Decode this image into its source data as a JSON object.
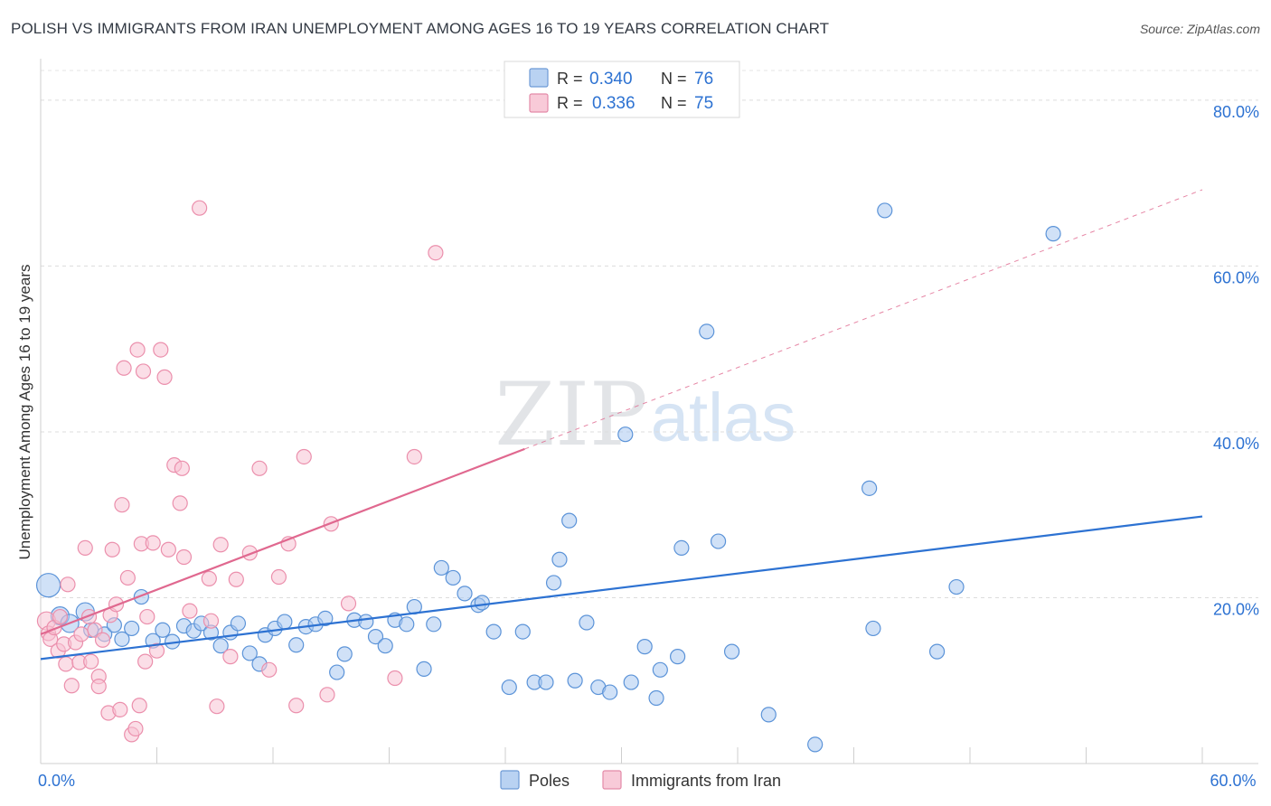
{
  "title": "POLISH VS IMMIGRANTS FROM IRAN UNEMPLOYMENT AMONG AGES 16 TO 19 YEARS CORRELATION CHART",
  "source": "Source: ZipAtlas.com",
  "watermark": {
    "zip": "ZIP",
    "atlas": "atlas"
  },
  "chart_data": {
    "type": "scatter",
    "xlabel": "",
    "ylabel": "Unemployment Among Ages 16 to 19 years",
    "xlim": [
      0,
      60
    ],
    "ylim": [
      0,
      85
    ],
    "x_tick_labels": [
      {
        "value": 0,
        "label": "0.0%"
      },
      {
        "value": 60,
        "label": "60.0%"
      }
    ],
    "y_tick_labels": [
      {
        "value": 20,
        "label": "20.0%"
      },
      {
        "value": 40,
        "label": "40.0%"
      },
      {
        "value": 60,
        "label": "60.0%"
      },
      {
        "value": 80,
        "label": "80.0%"
      }
    ],
    "grid": true,
    "legend_position": "top-center",
    "series": [
      {
        "name": "Poles",
        "color": "#5b93d8",
        "fill": "#a9c9f0",
        "line_color": "#2d72d2",
        "R": "0.340",
        "N": "76",
        "trend": {
          "x": [
            0,
            60
          ],
          "y": [
            12.6,
            29.8
          ],
          "dashed_from": null
        },
        "points": [
          [
            0.4,
            21.5,
            3
          ],
          [
            1.0,
            17.8,
            2
          ],
          [
            1.5,
            16.9,
            2
          ],
          [
            2.3,
            18.3,
            2
          ],
          [
            2.6,
            16.1,
            1
          ],
          [
            3.3,
            15.6,
            1
          ],
          [
            3.8,
            16.7,
            1
          ],
          [
            4.2,
            15.0,
            1
          ],
          [
            4.7,
            16.3,
            1
          ],
          [
            5.2,
            20.1,
            1
          ],
          [
            5.8,
            14.8,
            1
          ],
          [
            6.3,
            16.1,
            1
          ],
          [
            6.8,
            14.7,
            1
          ],
          [
            7.4,
            16.6,
            1
          ],
          [
            7.9,
            16.0,
            1
          ],
          [
            8.3,
            16.9,
            1
          ],
          [
            8.8,
            15.8,
            1
          ],
          [
            9.3,
            14.2,
            1
          ],
          [
            9.8,
            15.8,
            1
          ],
          [
            10.2,
            16.9,
            1
          ],
          [
            10.8,
            13.3,
            1
          ],
          [
            11.3,
            12.0,
            1
          ],
          [
            11.6,
            15.5,
            1
          ],
          [
            12.1,
            16.3,
            1
          ],
          [
            12.6,
            17.1,
            1
          ],
          [
            13.2,
            14.3,
            1
          ],
          [
            13.7,
            16.5,
            1
          ],
          [
            14.2,
            16.8,
            1
          ],
          [
            14.7,
            17.5,
            1
          ],
          [
            15.3,
            11.0,
            1
          ],
          [
            15.7,
            13.2,
            1
          ],
          [
            16.2,
            17.3,
            1
          ],
          [
            16.8,
            17.1,
            1
          ],
          [
            17.3,
            15.3,
            1
          ],
          [
            17.8,
            14.2,
            1
          ],
          [
            18.3,
            17.3,
            1
          ],
          [
            18.9,
            16.8,
            1
          ],
          [
            19.3,
            18.9,
            1
          ],
          [
            19.8,
            11.4,
            1
          ],
          [
            20.3,
            16.8,
            1
          ],
          [
            20.7,
            23.6,
            1
          ],
          [
            21.3,
            22.4,
            1
          ],
          [
            21.9,
            20.5,
            1
          ],
          [
            22.6,
            19.1,
            1
          ],
          [
            22.8,
            19.4,
            1
          ],
          [
            23.4,
            15.9,
            1
          ],
          [
            24.2,
            9.2,
            1
          ],
          [
            24.9,
            15.9,
            1
          ],
          [
            25.5,
            9.8,
            1
          ],
          [
            26.1,
            9.8,
            1
          ],
          [
            26.5,
            21.8,
            1
          ],
          [
            26.8,
            24.6,
            1
          ],
          [
            27.3,
            29.3,
            1
          ],
          [
            27.6,
            10.0,
            1
          ],
          [
            28.2,
            17.0,
            1
          ],
          [
            28.8,
            9.2,
            1
          ],
          [
            29.4,
            8.6,
            1
          ],
          [
            30.2,
            39.7,
            1
          ],
          [
            30.5,
            9.8,
            1
          ],
          [
            31.2,
            14.1,
            1
          ],
          [
            31.8,
            7.9,
            1
          ],
          [
            32.0,
            11.3,
            1
          ],
          [
            32.9,
            12.9,
            1
          ],
          [
            33.1,
            26.0,
            1
          ],
          [
            34.4,
            52.1,
            1
          ],
          [
            35.0,
            26.8,
            1
          ],
          [
            35.7,
            13.5,
            1
          ],
          [
            37.6,
            5.9,
            1
          ],
          [
            40.0,
            2.3,
            1
          ],
          [
            42.8,
            33.2,
            1
          ],
          [
            43.0,
            16.3,
            1
          ],
          [
            43.6,
            66.7,
            1
          ],
          [
            46.3,
            13.5,
            1
          ],
          [
            47.3,
            21.3,
            1
          ],
          [
            52.3,
            63.9,
            1
          ]
        ]
      },
      {
        "name": "Immigrants from Iran",
        "color": "#eb8fac",
        "fill": "#f7c3d3",
        "line_color": "#e0688f",
        "R": "0.336",
        "N": "75",
        "trend": {
          "x": [
            0,
            60
          ],
          "y": [
            15.6,
            69.2
          ],
          "dashed_from": 25.0
        },
        "points": [
          [
            0.3,
            17.2,
            2
          ],
          [
            0.4,
            15.7,
            1
          ],
          [
            0.5,
            15.0,
            1
          ],
          [
            0.7,
            16.4,
            1
          ],
          [
            0.9,
            13.6,
            1
          ],
          [
            1.0,
            17.7,
            1
          ],
          [
            1.2,
            14.4,
            1
          ],
          [
            1.3,
            12.0,
            1
          ],
          [
            1.4,
            21.6,
            1
          ],
          [
            1.6,
            9.4,
            1
          ],
          [
            1.8,
            14.6,
            1
          ],
          [
            2.0,
            12.2,
            1
          ],
          [
            2.1,
            15.6,
            1
          ],
          [
            2.3,
            26.0,
            1
          ],
          [
            2.5,
            17.7,
            1
          ],
          [
            2.6,
            12.3,
            1
          ],
          [
            2.8,
            16.1,
            1
          ],
          [
            3.0,
            10.5,
            1
          ],
          [
            3.0,
            9.3,
            1
          ],
          [
            3.2,
            14.9,
            1
          ],
          [
            3.5,
            6.1,
            1
          ],
          [
            3.6,
            17.9,
            1
          ],
          [
            3.7,
            25.8,
            1
          ],
          [
            3.9,
            19.2,
            1
          ],
          [
            4.1,
            6.5,
            1
          ],
          [
            4.2,
            31.2,
            1
          ],
          [
            4.3,
            47.7,
            1
          ],
          [
            4.5,
            22.4,
            1
          ],
          [
            4.7,
            3.5,
            1
          ],
          [
            4.9,
            4.2,
            1
          ],
          [
            5.0,
            49.9,
            1
          ],
          [
            5.1,
            7.0,
            1
          ],
          [
            5.2,
            26.5,
            1
          ],
          [
            5.3,
            47.3,
            1
          ],
          [
            5.4,
            12.3,
            1
          ],
          [
            5.5,
            17.7,
            1
          ],
          [
            5.8,
            26.6,
            1
          ],
          [
            6.0,
            13.6,
            1
          ],
          [
            6.2,
            49.9,
            1
          ],
          [
            6.4,
            46.6,
            1
          ],
          [
            6.6,
            25.8,
            1
          ],
          [
            6.9,
            36.0,
            1
          ],
          [
            7.2,
            31.4,
            1
          ],
          [
            7.3,
            35.6,
            1
          ],
          [
            7.4,
            24.9,
            1
          ],
          [
            7.7,
            18.4,
            1
          ],
          [
            8.2,
            67.0,
            1
          ],
          [
            8.7,
            22.3,
            1
          ],
          [
            8.8,
            17.2,
            1
          ],
          [
            9.1,
            6.9,
            1
          ],
          [
            9.3,
            26.4,
            1
          ],
          [
            9.8,
            12.9,
            1
          ],
          [
            10.1,
            22.2,
            1
          ],
          [
            10.8,
            25.4,
            1
          ],
          [
            11.3,
            35.6,
            1
          ],
          [
            11.8,
            11.3,
            1
          ],
          [
            12.3,
            22.5,
            1
          ],
          [
            12.8,
            26.5,
            1
          ],
          [
            13.2,
            7.0,
            1
          ],
          [
            13.6,
            37.0,
            1
          ],
          [
            14.8,
            8.3,
            1
          ],
          [
            15.0,
            28.9,
            1
          ],
          [
            15.9,
            19.3,
            1
          ],
          [
            18.3,
            10.3,
            1
          ],
          [
            19.3,
            37.0,
            1
          ],
          [
            20.4,
            61.6,
            1
          ]
        ]
      }
    ]
  },
  "legend": [
    {
      "r_label": "R =",
      "r_value": "0.340",
      "n_label": "N =",
      "n_value": "76"
    },
    {
      "r_label": "R =",
      "r_value": "0.336",
      "n_label": "N =",
      "n_value": "75"
    }
  ],
  "bottom_legend": [
    "Poles",
    "Immigrants from Iran"
  ]
}
